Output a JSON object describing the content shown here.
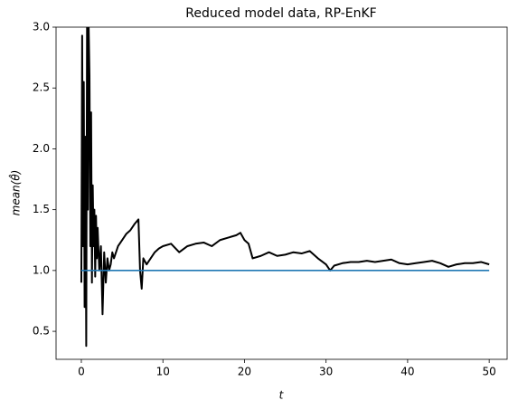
{
  "chart_data": {
    "type": "line",
    "title": "Reduced model data, RP-EnKF",
    "xlabel": "t",
    "ylabel": "mean(θ̂)",
    "xlim": [
      -3.1,
      52.2
    ],
    "ylim": [
      0.27,
      3.0
    ],
    "xticks": [
      0,
      10,
      20,
      30,
      40,
      50
    ],
    "yticks": [
      {
        "value": 0.5,
        "label": "0.5"
      },
      {
        "value": 1.0,
        "label": "1.0"
      },
      {
        "value": 1.5,
        "label": "1.5"
      },
      {
        "value": 2.0,
        "label": "2.0"
      },
      {
        "value": 2.5,
        "label": "2.5"
      },
      {
        "value": 3.0,
        "label": "3.0"
      }
    ],
    "series": [
      {
        "color": "#000000",
        "x": [
          0,
          0.1,
          0.2,
          0.3,
          0.4,
          0.5,
          0.6,
          0.7,
          0.8,
          0.9,
          1.0,
          1.1,
          1.2,
          1.3,
          1.4,
          1.5,
          1.6,
          1.7,
          1.8,
          1.9,
          2.0,
          2.2,
          2.4,
          2.6,
          2.8,
          3.0,
          3.2,
          3.4,
          3.6,
          3.8,
          4.0,
          4.5,
          5,
          5.5,
          6,
          6.5,
          7,
          7.2,
          7.4,
          7.6,
          8,
          8.5,
          9,
          9.5,
          10,
          11,
          12,
          13,
          14,
          15,
          16,
          17,
          18,
          19,
          19.5,
          20,
          20.5,
          21,
          22,
          23,
          24,
          25,
          26,
          27,
          28,
          29,
          30,
          30.5,
          31,
          32,
          33,
          34,
          35,
          36,
          37,
          38,
          39,
          40,
          41,
          42,
          43,
          44,
          45,
          46,
          47,
          48,
          49,
          50
        ],
        "values": [
          0.9,
          2.93,
          1.2,
          2.55,
          0.7,
          2.1,
          0.38,
          3.0,
          1.5,
          3.0,
          2.6,
          1.2,
          2.3,
          0.9,
          1.7,
          1.2,
          1.5,
          0.95,
          1.45,
          1.1,
          1.35,
          1.0,
          1.2,
          0.64,
          1.15,
          0.9,
          1.1,
          1.0,
          1.05,
          1.15,
          1.1,
          1.2,
          1.25,
          1.3,
          1.33,
          1.38,
          1.42,
          1.0,
          0.85,
          1.1,
          1.05,
          1.1,
          1.15,
          1.18,
          1.2,
          1.22,
          1.15,
          1.2,
          1.22,
          1.23,
          1.2,
          1.25,
          1.27,
          1.29,
          1.31,
          1.25,
          1.22,
          1.1,
          1.12,
          1.15,
          1.12,
          1.13,
          1.15,
          1.14,
          1.16,
          1.1,
          1.05,
          1.0,
          1.04,
          1.06,
          1.07,
          1.07,
          1.08,
          1.07,
          1.08,
          1.09,
          1.06,
          1.05,
          1.06,
          1.07,
          1.08,
          1.06,
          1.03,
          1.05,
          1.06,
          1.06,
          1.07,
          1.05
        ]
      },
      {
        "color": "#1f77b4",
        "x": [
          0,
          50
        ],
        "values": [
          1,
          1
        ]
      }
    ]
  }
}
